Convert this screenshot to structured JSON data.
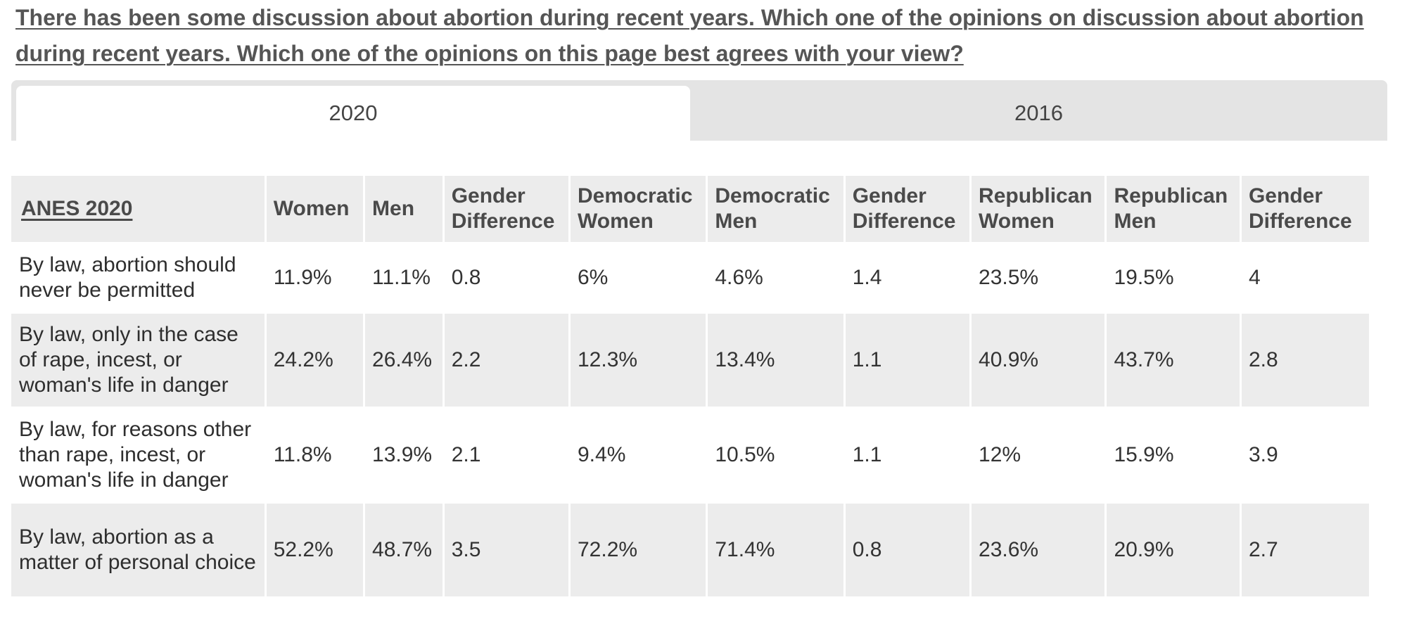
{
  "question": "There has been some discussion about abortion during recent years. Which one of the opinions on discussion about abortion during recent years. Which one of the opinions on this page best agrees with your view? ",
  "tabs": [
    {
      "label": "2020",
      "active": true
    },
    {
      "label": "2016",
      "active": false
    }
  ],
  "table": {
    "corner": "ANES 2020",
    "columns": [
      "Women",
      "Men",
      "Gender Difference",
      "Democratic Women",
      "Democratic Men",
      "Gender Difference",
      "Republican Women",
      "Republican Men",
      "Gender Difference"
    ],
    "rows": [
      {
        "label": "By law, abortion should never be permitted",
        "cells": [
          "11.9%",
          "11.1%",
          "0.8",
          "6%",
          "4.6%",
          "1.4",
          "23.5%",
          "19.5%",
          "4"
        ]
      },
      {
        "label": "By law, only in the case of rape, incest, or woman's life in danger",
        "cells": [
          "24.2%",
          "26.4%",
          "2.2",
          "12.3%",
          "13.4%",
          "1.1",
          "40.9%",
          "43.7%",
          "2.8"
        ]
      },
      {
        "label": "By law, for reasons other than rape, incest, or woman's life in danger",
        "cells": [
          "11.8%",
          "13.9%",
          "2.1",
          "9.4%",
          "10.5%",
          "1.1",
          "12%",
          "15.9%",
          "3.9"
        ]
      },
      {
        "label": "By law, abortion as a matter of personal choice",
        "cells": [
          "52.2%",
          "48.7%",
          "3.5",
          "72.2%",
          "71.4%",
          "0.8",
          "23.6%",
          "20.9%",
          "2.7"
        ]
      }
    ]
  }
}
